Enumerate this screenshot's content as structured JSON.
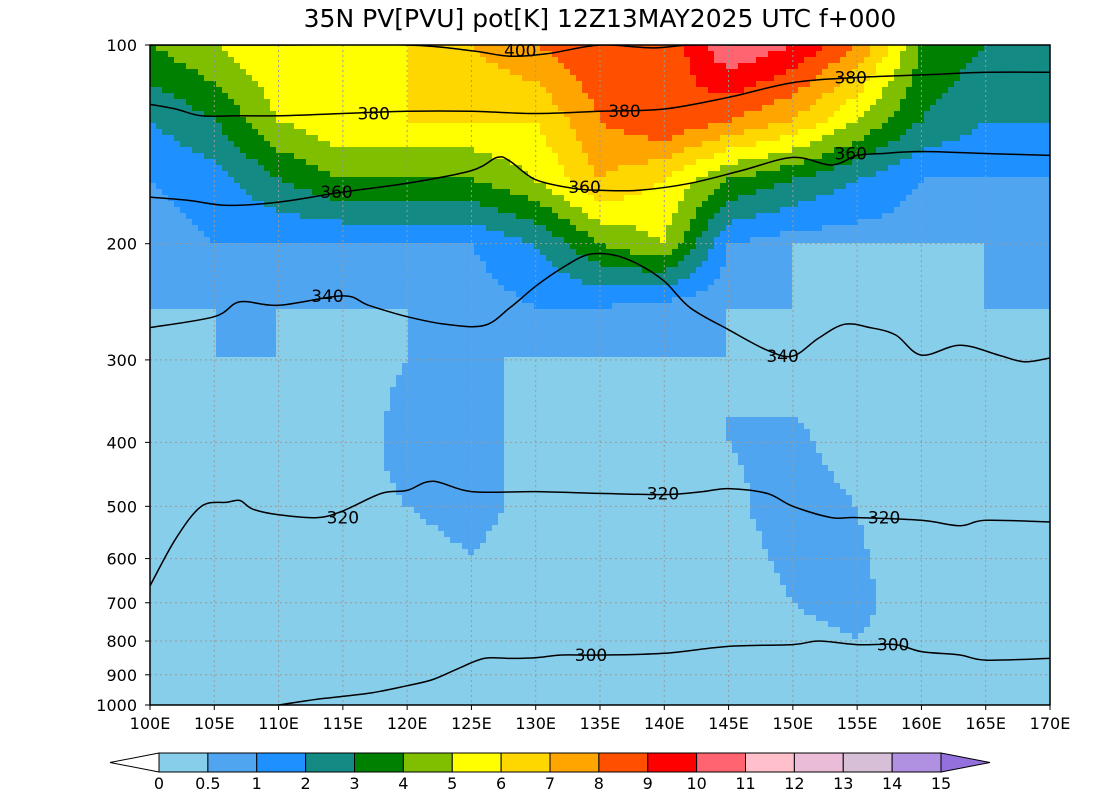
{
  "chart_data": {
    "type": "heatmap",
    "title": "35N PV[PVU] pot[K] 12Z13MAY2025 UTC f+000",
    "x_axis": {
      "range": [
        100,
        170
      ],
      "ticks": [
        100,
        105,
        110,
        115,
        120,
        125,
        130,
        135,
        140,
        145,
        150,
        155,
        160,
        165,
        170
      ],
      "tick_labels": [
        "100E",
        "105E",
        "110E",
        "115E",
        "120E",
        "125E",
        "130E",
        "135E",
        "140E",
        "145E",
        "150E",
        "155E",
        "160E",
        "165E",
        "170E"
      ]
    },
    "y_axis": {
      "scale": "log",
      "inverted": true,
      "range": [
        1000,
        100
      ],
      "ticks": [
        100,
        200,
        300,
        400,
        500,
        600,
        700,
        800,
        900,
        1000
      ],
      "tick_labels": [
        "100",
        "200",
        "300",
        "400",
        "500",
        "600",
        "700",
        "800",
        "900",
        "1000"
      ]
    },
    "grid": true,
    "colorbar": {
      "placement": "bottom",
      "levels": [
        0,
        0.5,
        1,
        2,
        3,
        4,
        5,
        6,
        7,
        8,
        9,
        10,
        11,
        12,
        13,
        14,
        15
      ],
      "labels": [
        "0",
        "0.5",
        "1",
        "2",
        "3",
        "4",
        "5",
        "6",
        "7",
        "8",
        "9",
        "10",
        "11",
        "12",
        "13",
        "14",
        "15"
      ],
      "colors": [
        "#87ceeb",
        "#50a5f0",
        "#1e90ff",
        "#138a84",
        "#008000",
        "#7fbf00",
        "#ffff00",
        "#ffd700",
        "#ffa500",
        "#ff5000",
        "#ff0000",
        "#ff6470",
        "#ffc0cb",
        "#ebbcd8",
        "#d8bfd8",
        "#b090e0"
      ],
      "under_color": "#ffffff",
      "over_color": "#9370db"
    },
    "pv_field": {
      "units": "PVU",
      "pressures": [
        100,
        130,
        160,
        200,
        250,
        300,
        400,
        500,
        700,
        1000
      ],
      "longitudes": [
        100,
        105,
        110,
        115,
        120,
        125,
        130,
        135,
        140,
        145,
        150,
        155,
        160,
        165,
        170
      ],
      "values": [
        [
          4,
          5,
          6,
          5,
          6,
          7,
          8,
          9,
          8,
          11,
          10,
          8,
          4,
          3,
          3
        ],
        [
          2,
          3,
          5,
          6,
          6,
          6,
          6,
          8,
          9,
          8,
          7,
          5,
          3,
          2,
          2
        ],
        [
          1,
          1.5,
          3,
          4,
          4,
          4,
          5,
          7,
          6,
          4,
          3,
          2,
          1,
          1,
          1
        ],
        [
          0.5,
          1,
          1,
          1,
          1,
          1,
          2,
          4,
          5,
          1,
          0.5,
          0.5,
          0.5,
          0.5,
          0.5
        ],
        [
          0.5,
          0.5,
          0.5,
          0.5,
          0.5,
          0.5,
          1,
          1,
          0.5,
          0.5,
          0.5,
          0.3,
          0.3,
          0.5,
          0.5
        ],
        [
          0.3,
          0.5,
          0.5,
          0.3,
          0.5,
          0.5,
          0.5,
          0.5,
          0.5,
          0.5,
          0.3,
          0.3,
          0.2,
          0.3,
          0.3
        ],
        [
          0.3,
          0.5,
          0.3,
          0.2,
          0.7,
          0.6,
          0.4,
          0.4,
          0.3,
          0.5,
          0.6,
          0.3,
          0.2,
          0.3,
          0.3
        ],
        [
          0.3,
          0.3,
          0.3,
          0.3,
          0.5,
          0.6,
          0.4,
          0.3,
          0.3,
          0.4,
          0.7,
          0.5,
          0.2,
          0.3,
          0.3
        ],
        [
          0.3,
          0.3,
          0.2,
          0.3,
          0.3,
          0.4,
          0.3,
          0.3,
          0.3,
          0.3,
          0.5,
          0.6,
          0.3,
          0.3,
          0.3
        ],
        [
          0.3,
          0.3,
          0.3,
          0.3,
          0.3,
          0.4,
          0.3,
          0.3,
          0.3,
          0.3,
          0.3,
          0.3,
          0.3,
          0.3,
          0.3
        ]
      ]
    },
    "isentropes": {
      "units": "K",
      "series": [
        {
          "name": "400",
          "x": [
            100,
            110,
            120,
            125,
            128,
            131,
            135,
            139,
            142,
            146,
            150
          ],
          "y": [
            100,
            100,
            100,
            102,
            104,
            103,
            100,
            101,
            100,
            100,
            100
          ]
        },
        {
          "name": "380",
          "x": [
            100,
            102,
            104,
            107,
            110,
            115,
            120,
            125,
            130,
            135,
            140,
            145,
            150,
            155,
            160,
            165,
            170
          ],
          "y": [
            123,
            125,
            128,
            128,
            128,
            127,
            126,
            126,
            127,
            126,
            125,
            120,
            114,
            112,
            111,
            110,
            110
          ]
        },
        {
          "name": "360",
          "x": [
            100,
            103,
            106,
            110,
            115,
            120,
            125,
            127,
            128,
            130,
            133,
            135,
            138,
            142,
            146,
            150,
            153,
            155,
            157,
            160,
            165,
            170
          ],
          "y": [
            170,
            172,
            175,
            173,
            167,
            162,
            155,
            148,
            150,
            160,
            165,
            166,
            166,
            162,
            155,
            148,
            152,
            147,
            146,
            145,
            146,
            147
          ]
        },
        {
          "name": "340",
          "x": [
            100,
            105,
            107,
            110,
            115,
            117,
            120,
            123,
            126,
            128,
            130,
            132,
            134,
            136,
            138,
            140,
            142,
            145,
            148,
            150,
            152,
            154,
            156,
            158,
            160,
            163,
            166,
            168,
            170
          ],
          "y": [
            268,
            258,
            245,
            248,
            240,
            248,
            258,
            265,
            266,
            250,
            232,
            218,
            208,
            208,
            215,
            228,
            250,
            270,
            290,
            296,
            278,
            265,
            268,
            275,
            295,
            285,
            295,
            302,
            298
          ]
        },
        {
          "name": "320",
          "x": [
            100,
            102,
            104,
            106,
            107,
            108,
            110,
            113,
            115,
            118,
            120,
            122,
            125,
            130,
            135,
            140,
            143,
            145,
            148,
            150,
            153,
            155,
            160,
            163,
            165,
            170
          ],
          "y": [
            660,
            560,
            500,
            493,
            490,
            505,
            515,
            520,
            508,
            478,
            473,
            458,
            475,
            475,
            478,
            480,
            475,
            470,
            478,
            500,
            520,
            520,
            525,
            535,
            525,
            528
          ]
        },
        {
          "name": "300",
          "x": [
            110,
            113,
            117,
            120,
            122,
            124,
            126,
            128,
            130,
            132,
            135,
            140,
            145,
            150,
            152,
            155,
            158,
            160,
            163,
            165,
            170
          ],
          "y": [
            1000,
            980,
            960,
            935,
            915,
            880,
            850,
            850,
            848,
            840,
            840,
            835,
            815,
            810,
            800,
            810,
            810,
            830,
            840,
            855,
            850
          ]
        }
      ],
      "labels": [
        {
          "text": "400",
          "x": 128.8,
          "y": 102
        },
        {
          "text": "380",
          "x": 117.4,
          "y": 127
        },
        {
          "text": "380",
          "x": 136.9,
          "y": 126
        },
        {
          "text": "380",
          "x": 154.5,
          "y": 112
        },
        {
          "text": "360",
          "x": 114.5,
          "y": 167
        },
        {
          "text": "360",
          "x": 133.8,
          "y": 164
        },
        {
          "text": "360",
          "x": 154.5,
          "y": 146
        },
        {
          "text": "340",
          "x": 113.8,
          "y": 240
        },
        {
          "text": "340",
          "x": 149.2,
          "y": 296
        },
        {
          "text": "320",
          "x": 115.0,
          "y": 520
        },
        {
          "text": "320",
          "x": 139.9,
          "y": 478
        },
        {
          "text": "320",
          "x": 157.1,
          "y": 520
        },
        {
          "text": "300",
          "x": 134.3,
          "y": 840
        },
        {
          "text": "300",
          "x": 157.8,
          "y": 810
        }
      ]
    }
  }
}
